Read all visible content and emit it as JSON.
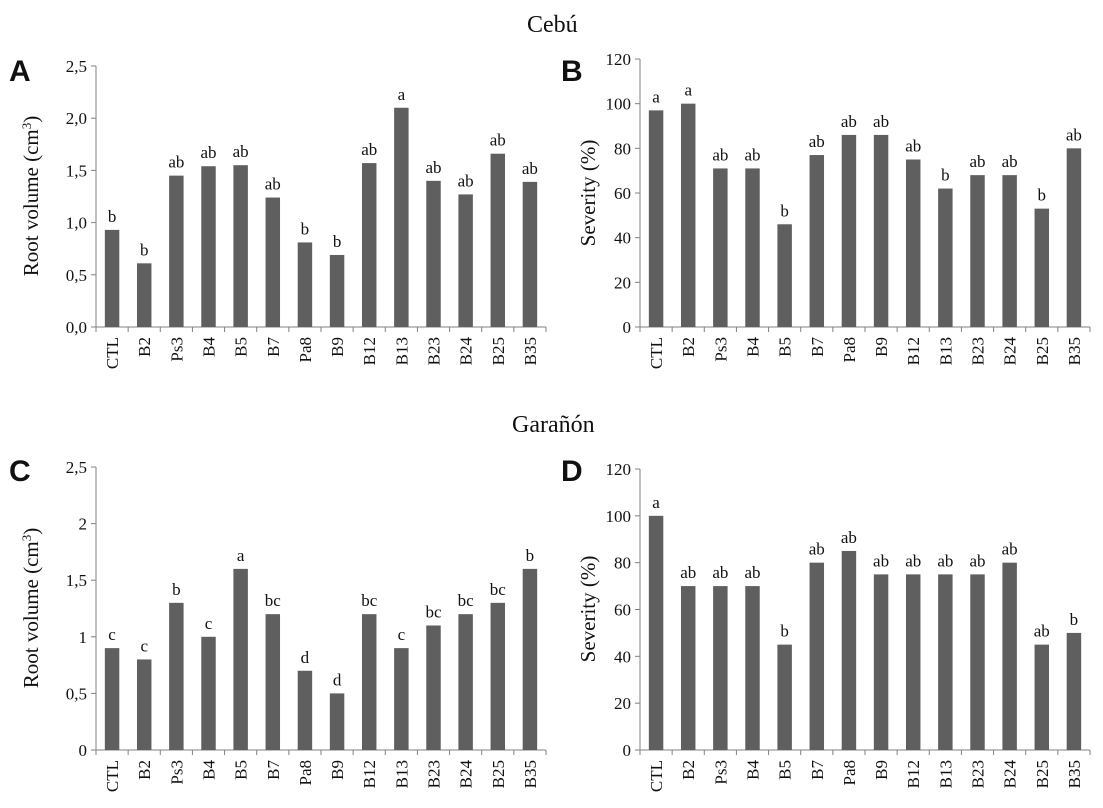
{
  "sections": {
    "top": "Cebú",
    "bottom": "Garañón"
  },
  "panels": {
    "A": "A",
    "B": "B",
    "C": "C",
    "D": "D"
  },
  "colors": {
    "bar": "#5f5f5f",
    "axis": "#808080",
    "text": "#111111"
  },
  "chart_data": [
    {
      "id": "A",
      "type": "bar",
      "ylabel_base": "Root volume (cm",
      "ylabel_sup": "3",
      "ylabel_end": ")",
      "ylim": [
        0,
        2.5
      ],
      "yticks": [
        "0,0",
        "0,5",
        "1,0",
        "1,5",
        "2,0",
        "2,5"
      ],
      "categories": [
        "CTL",
        "B2",
        "Ps3",
        "B4",
        "B5",
        "B7",
        "Pa8",
        "B9",
        "B12",
        "B13",
        "B23",
        "B24",
        "B25",
        "B35"
      ],
      "values": [
        0.93,
        0.61,
        1.45,
        1.54,
        1.55,
        1.24,
        0.81,
        0.69,
        1.57,
        2.1,
        1.4,
        1.27,
        1.66,
        1.39
      ],
      "labels": [
        "b",
        "b",
        "ab",
        "ab",
        "ab",
        "ab",
        "b",
        "b",
        "ab",
        "a",
        "ab",
        "ab",
        "ab",
        "ab"
      ]
    },
    {
      "id": "B",
      "type": "bar",
      "ylabel_base": "Severity (%)",
      "ylabel_sup": "",
      "ylabel_end": "",
      "ylim": [
        0,
        120
      ],
      "yticks": [
        "0",
        "20",
        "40",
        "60",
        "80",
        "100",
        "120"
      ],
      "categories": [
        "CTL",
        "B2",
        "Ps3",
        "B4",
        "B5",
        "B7",
        "Pa8",
        "B9",
        "B12",
        "B13",
        "B23",
        "B24",
        "B25",
        "B35"
      ],
      "values": [
        97,
        100,
        71,
        71,
        46,
        77,
        86,
        86,
        75,
        62,
        68,
        68,
        53,
        80
      ],
      "labels": [
        "a",
        "a",
        "ab",
        "ab",
        "b",
        "ab",
        "ab",
        "ab",
        "ab",
        "b",
        "ab",
        "ab",
        "b",
        "ab"
      ]
    },
    {
      "id": "C",
      "type": "bar",
      "ylabel_base": "Root volume (cm",
      "ylabel_sup": "3",
      "ylabel_end": ")",
      "ylim": [
        0,
        2.5
      ],
      "yticks": [
        "0",
        "0,5",
        "1",
        "1,5",
        "2",
        "2,5"
      ],
      "categories": [
        "CTL",
        "B2",
        "Ps3",
        "B4",
        "B5",
        "B7",
        "Pa8",
        "B9",
        "B12",
        "B13",
        "B23",
        "B24",
        "B25",
        "B35"
      ],
      "values": [
        0.9,
        0.8,
        1.3,
        1.0,
        1.6,
        1.2,
        0.7,
        0.5,
        1.2,
        0.9,
        1.1,
        1.2,
        1.3,
        1.6
      ],
      "labels": [
        "c",
        "c",
        "b",
        "c",
        "a",
        "bc",
        "d",
        "d",
        "bc",
        "c",
        "bc",
        "bc",
        "bc",
        "b"
      ]
    },
    {
      "id": "D",
      "type": "bar",
      "ylabel_base": "Severity (%)",
      "ylabel_sup": "",
      "ylabel_end": "",
      "ylim": [
        0,
        120
      ],
      "yticks": [
        "0",
        "20",
        "40",
        "60",
        "80",
        "100",
        "120"
      ],
      "categories": [
        "CTL",
        "B2",
        "Ps3",
        "B4",
        "B5",
        "B7",
        "Pa8",
        "B9",
        "B12",
        "B13",
        "B23",
        "B24",
        "B25",
        "B35"
      ],
      "values": [
        100,
        70,
        70,
        70,
        45,
        80,
        85,
        75,
        75,
        75,
        75,
        80,
        45,
        50
      ],
      "labels": [
        "a",
        "ab",
        "ab",
        "ab",
        "b",
        "ab",
        "ab",
        "ab",
        "ab",
        "ab",
        "ab",
        "ab",
        "ab",
        "b"
      ]
    }
  ]
}
